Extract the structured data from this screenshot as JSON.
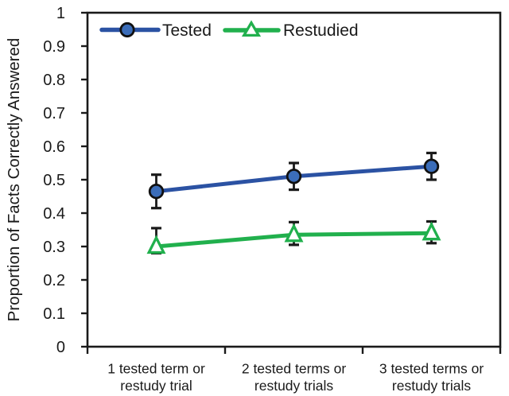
{
  "chart_data": {
    "type": "line",
    "title": "",
    "xlabel": "",
    "ylabel": "Proportion of Facts Correctly Answered",
    "ylim": [
      0,
      1
    ],
    "ytick_step": 0.1,
    "grid": false,
    "legend_position": "top-inside",
    "frame": "full-box",
    "categories": [
      [
        "1 tested term or",
        "restudy trial"
      ],
      [
        "2 tested terms or",
        "restudy trials"
      ],
      [
        "3 tested terms or",
        "restudy trials"
      ]
    ],
    "yticks": [
      {
        "v": 1.0,
        "label": "1"
      },
      {
        "v": 0.9,
        "label": "0.9"
      },
      {
        "v": 0.8,
        "label": "0.8"
      },
      {
        "v": 0.7,
        "label": "0.7"
      },
      {
        "v": 0.6,
        "label": "0.6"
      },
      {
        "v": 0.5,
        "label": "0.5"
      },
      {
        "v": 0.4,
        "label": "0.4"
      },
      {
        "v": 0.3,
        "label": "0.3"
      },
      {
        "v": 0.2,
        "label": "0.2"
      },
      {
        "v": 0.1,
        "label": "0.1"
      },
      {
        "v": 0.0,
        "label": "0"
      }
    ],
    "series": [
      {
        "name": "Tested",
        "marker": "circle",
        "color": "#2B52A3",
        "marker_fill": "#3B6DB9",
        "marker_stroke": "#111111",
        "values": [
          0.465,
          0.51,
          0.54
        ],
        "error_up": [
          0.05,
          0.04,
          0.04
        ],
        "error_down": [
          0.05,
          0.04,
          0.04
        ]
      },
      {
        "name": "Restudied",
        "marker": "triangle-open",
        "color": "#21B04D",
        "marker_fill": "#FFFFFF",
        "marker_stroke": "#21B04D",
        "values": [
          0.3,
          0.335,
          0.34
        ],
        "error_up": [
          0.055,
          0.038,
          0.035
        ],
        "error_down": [
          0.02,
          0.03,
          0.03
        ]
      }
    ],
    "error_bar_color": "#1A1A1A",
    "axis_color": "#1A1A1A"
  }
}
